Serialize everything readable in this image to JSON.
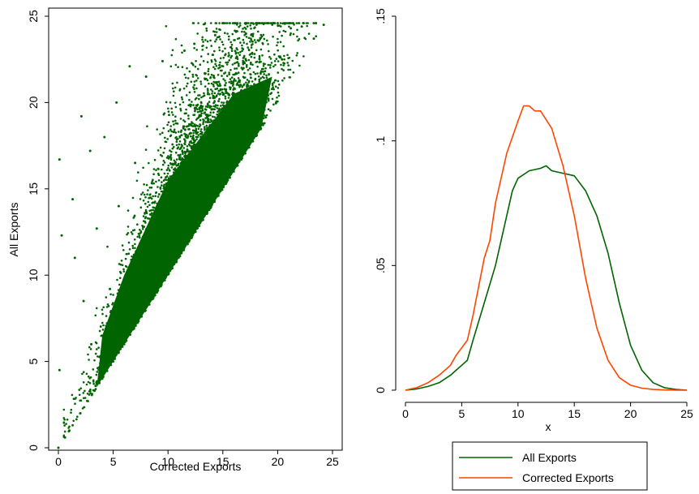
{
  "chart_data": [
    {
      "type": "scatter",
      "xlabel": "Corrected Exports",
      "ylabel": "All Exports",
      "xlim": [
        0,
        25
      ],
      "ylim": [
        0,
        25
      ],
      "xticks": [
        "0",
        "5",
        "10",
        "15",
        "20",
        "25"
      ],
      "yticks": [
        "0",
        "5",
        "10",
        "15",
        "20",
        "25"
      ],
      "grid": false,
      "marker_color": "#006400",
      "points": [
        [
          0.0,
          0.0
        ],
        [
          0.1,
          4.5
        ],
        [
          0.1,
          16.7
        ],
        [
          0.3,
          12.3
        ],
        [
          0.6,
          0.6
        ],
        [
          1.0,
          1.0
        ],
        [
          1.3,
          14.4
        ],
        [
          1.5,
          11.0
        ],
        [
          2.1,
          19.2
        ],
        [
          2.3,
          8.5
        ],
        [
          2.9,
          17.2
        ],
        [
          3.0,
          6.0
        ],
        [
          3.5,
          12.7
        ],
        [
          4.2,
          18.0
        ],
        [
          4.7,
          9.2
        ],
        [
          5.3,
          20.0
        ],
        [
          5.5,
          14.0
        ],
        [
          6.5,
          22.1
        ],
        [
          7.0,
          16.5
        ],
        [
          8.0,
          21.5
        ],
        [
          9.0,
          13.0
        ],
        [
          9.5,
          22.4
        ],
        [
          10.5,
          18.3
        ],
        [
          11.5,
          23.0
        ],
        [
          12.4,
          23.4
        ],
        [
          13.0,
          19.5
        ],
        [
          14.3,
          23.9
        ],
        [
          15.2,
          21.0
        ],
        [
          16.2,
          24.1
        ],
        [
          17.1,
          24.0
        ],
        [
          18.2,
          23.6
        ],
        [
          19.6,
          24.6
        ],
        [
          20.4,
          22.5
        ],
        [
          21.2,
          24.3
        ],
        [
          22.2,
          24.4
        ],
        [
          23.3,
          23.7
        ],
        [
          24.2,
          24.5
        ],
        [
          3.3,
          3.3
        ],
        [
          4.0,
          4.0
        ],
        [
          5.0,
          5.0
        ],
        [
          6.0,
          6.0
        ],
        [
          2.0,
          2.0
        ]
      ]
    },
    {
      "type": "line",
      "xlabel": "x",
      "ylabel": "",
      "xlim": [
        0,
        25
      ],
      "ylim": [
        0,
        0.15
      ],
      "xticks": [
        "0",
        "5",
        "10",
        "15",
        "20",
        "25"
      ],
      "yticks": [
        "0",
        ".05",
        ".1",
        ".15"
      ],
      "grid": false,
      "legend_position": "bottom",
      "series": [
        {
          "name": "All Exports",
          "color": "#006400",
          "x": [
            0,
            1,
            2,
            3,
            4,
            4.5,
            5,
            5.5,
            6,
            7,
            8,
            9,
            9.5,
            10,
            11,
            12,
            12.5,
            13,
            14,
            15,
            16,
            17,
            18,
            19,
            20,
            21,
            22,
            23,
            24,
            25
          ],
          "y": [
            0.0,
            0.0005,
            0.0015,
            0.003,
            0.006,
            0.008,
            0.01,
            0.012,
            0.02,
            0.035,
            0.05,
            0.07,
            0.08,
            0.085,
            0.088,
            0.089,
            0.09,
            0.088,
            0.087,
            0.086,
            0.08,
            0.07,
            0.055,
            0.035,
            0.018,
            0.008,
            0.003,
            0.001,
            0.0003,
            0.0
          ]
        },
        {
          "name": "Corrected Exports",
          "color": "#ff4500",
          "x": [
            0,
            1,
            2,
            3,
            4,
            4.5,
            5,
            5.5,
            6,
            7,
            7.5,
            8,
            9,
            10,
            10.5,
            11,
            11.5,
            12,
            13,
            14,
            15,
            16,
            17,
            18,
            19,
            20,
            21,
            22,
            23,
            24,
            25
          ],
          "y": [
            0.0,
            0.001,
            0.003,
            0.006,
            0.01,
            0.014,
            0.017,
            0.02,
            0.03,
            0.053,
            0.06,
            0.075,
            0.095,
            0.108,
            0.114,
            0.114,
            0.112,
            0.112,
            0.105,
            0.09,
            0.07,
            0.045,
            0.025,
            0.012,
            0.005,
            0.002,
            0.0008,
            0.0003,
            0.0001,
            0.0,
            0.0
          ]
        }
      ]
    }
  ]
}
